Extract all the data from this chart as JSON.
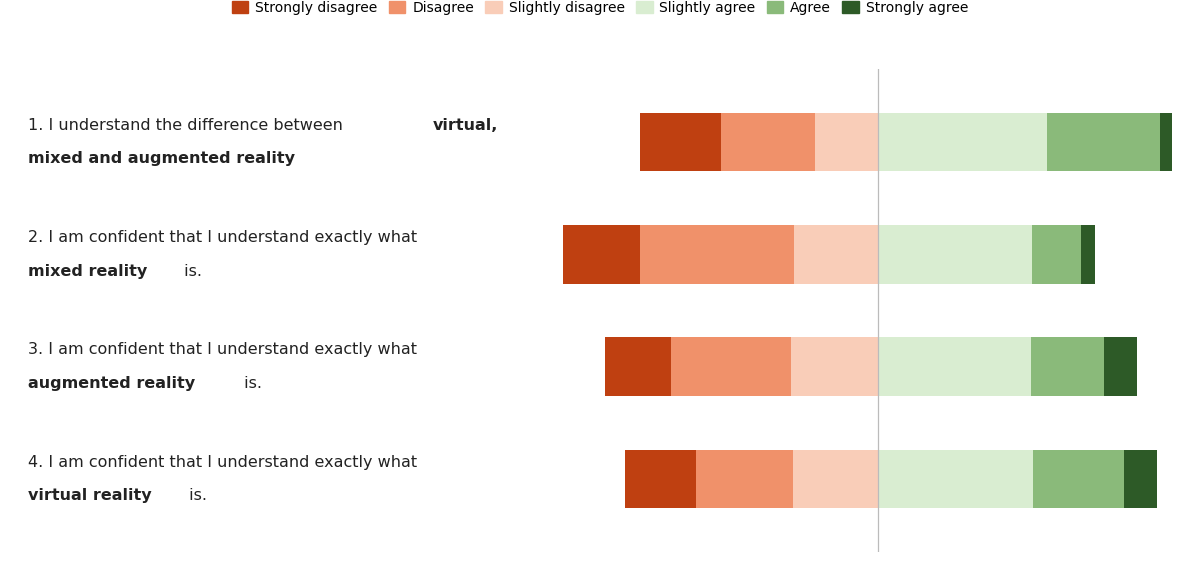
{
  "questions": [
    [
      [
        {
          "text": "1. I understand the difference between ",
          "bold": false
        },
        {
          "text": "virtual,",
          "bold": true
        }
      ],
      [
        {
          "text": "mixed and augmented reality",
          "bold": true
        }
      ]
    ],
    [
      [
        {
          "text": "2. I am confident that I understand exactly what",
          "bold": false
        }
      ],
      [
        {
          "text": "mixed reality",
          "bold": true
        },
        {
          "text": " is.",
          "bold": false
        }
      ]
    ],
    [
      [
        {
          "text": "3. I am confident that I understand exactly what",
          "bold": false
        }
      ],
      [
        {
          "text": "augmented reality",
          "bold": true
        },
        {
          "text": " is.",
          "bold": false
        }
      ]
    ],
    [
      [
        {
          "text": "4. I am confident that I understand exactly what",
          "bold": false
        }
      ],
      [
        {
          "text": "virtual reality",
          "bold": true
        },
        {
          "text": " is.",
          "bold": false
        }
      ]
    ]
  ],
  "categories": [
    "Strongly disagree",
    "Disagree",
    "Slightly disagree",
    "Slightly agree",
    "Agree",
    "Strongly agree"
  ],
  "colors": [
    "#bf4011",
    "#f0916a",
    "#f9cdb8",
    "#d9edd1",
    "#8aba7a",
    "#2d5a27"
  ],
  "data": [
    [
      13,
      15,
      10,
      27,
      18,
      2
    ],
    [
      11,
      22,
      12,
      22,
      7,
      2
    ],
    [
      10,
      18,
      13,
      23,
      11,
      5
    ],
    [
      11,
      15,
      13,
      24,
      14,
      5
    ]
  ],
  "bar_height": 0.52,
  "figsize": [
    12.0,
    5.75
  ],
  "dpi": 100,
  "bg_color": "#ffffff",
  "legend_fontsize": 10,
  "question_fontsize": 11.5
}
